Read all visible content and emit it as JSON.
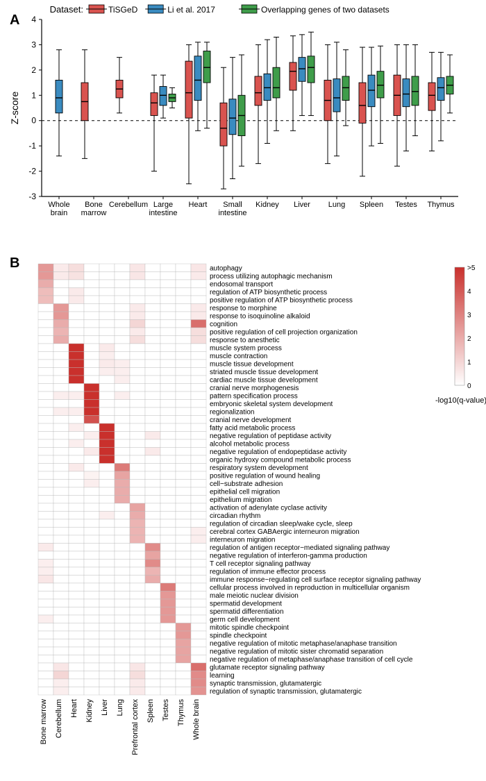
{
  "panelA": {
    "label": "A",
    "type": "boxplot",
    "legend_title": "Dataset:",
    "datasets": [
      {
        "name": "TiSGeD",
        "color": "#d9534f"
      },
      {
        "name": "Li et al. 2017",
        "color": "#3a8bc0"
      },
      {
        "name": "Overlapping genes of two datasets",
        "color": "#3f9d4a"
      }
    ],
    "ylabel": "Z-score",
    "ylim": [
      -3,
      4
    ],
    "ytick_step": 1,
    "categories": [
      "Whole\nbrain",
      "Bone\nmarrow",
      "Cerebellum",
      "Large\nintestine",
      "Heart",
      "Small\nintestine",
      "Kidney",
      "Liver",
      "Lung",
      "Spleen",
      "Testes",
      "Thymus"
    ],
    "boxes": {
      "Whole brain": [
        null,
        {
          "q1": 0.3,
          "med": 0.9,
          "q3": 1.6,
          "wl": -1.4,
          "wh": 2.8
        },
        null
      ],
      "Bone marrow": [
        {
          "q1": 0.0,
          "med": 0.75,
          "q3": 1.5,
          "wl": -1.5,
          "wh": 2.8
        },
        null,
        null
      ],
      "Cerebellum": [
        {
          "q1": 0.9,
          "med": 1.25,
          "q3": 1.6,
          "wl": 0.3,
          "wh": 2.5
        },
        null,
        null
      ],
      "Large intestine": [
        {
          "q1": 0.2,
          "med": 0.7,
          "q3": 1.1,
          "wl": -2.0,
          "wh": 1.8
        },
        {
          "q1": 0.6,
          "med": 1.0,
          "q3": 1.35,
          "wl": 0.1,
          "wh": 1.8
        },
        {
          "q1": 0.75,
          "med": 0.9,
          "q3": 1.05,
          "wl": 0.5,
          "wh": 1.3
        }
      ],
      "Heart": [
        {
          "q1": 0.1,
          "med": 1.1,
          "q3": 2.35,
          "wl": -2.5,
          "wh": 3.0
        },
        {
          "q1": 0.8,
          "med": 1.6,
          "q3": 2.55,
          "wl": -0.4,
          "wh": 3.1
        },
        {
          "q1": 1.5,
          "med": 2.1,
          "q3": 2.75,
          "wl": -0.3,
          "wh": 3.1
        }
      ],
      "Small intestine": [
        {
          "q1": -1.0,
          "med": -0.3,
          "q3": 0.7,
          "wl": -2.7,
          "wh": 2.1
        },
        {
          "q1": -0.55,
          "med": 0.1,
          "q3": 0.85,
          "wl": -2.3,
          "wh": 2.5
        },
        {
          "q1": -0.6,
          "med": 0.2,
          "q3": 1.0,
          "wl": -1.8,
          "wh": 2.6
        }
      ],
      "Kidney": [
        {
          "q1": 0.6,
          "med": 1.1,
          "q3": 1.75,
          "wl": -1.7,
          "wh": 3.0
        },
        {
          "q1": 0.8,
          "med": 1.3,
          "q3": 1.85,
          "wl": -0.9,
          "wh": 3.2
        },
        {
          "q1": 0.9,
          "med": 1.3,
          "q3": 2.1,
          "wl": -0.4,
          "wh": 3.3
        }
      ],
      "Liver": [
        {
          "q1": 1.2,
          "med": 1.95,
          "q3": 2.3,
          "wl": -0.4,
          "wh": 3.35
        },
        {
          "q1": 1.55,
          "med": 2.05,
          "q3": 2.5,
          "wl": 0.2,
          "wh": 3.4
        },
        {
          "q1": 1.5,
          "med": 2.1,
          "q3": 2.55,
          "wl": 0.2,
          "wh": 3.5
        }
      ],
      "Lung": [
        {
          "q1": 0.0,
          "med": 0.8,
          "q3": 1.6,
          "wl": -1.7,
          "wh": 3.0
        },
        {
          "q1": 0.35,
          "med": 0.9,
          "q3": 1.65,
          "wl": -1.4,
          "wh": 3.1
        },
        {
          "q1": 0.8,
          "med": 1.3,
          "q3": 1.75,
          "wl": -0.2,
          "wh": 2.8
        }
      ],
      "Spleen": [
        {
          "q1": -0.1,
          "med": 0.6,
          "q3": 1.5,
          "wl": -2.2,
          "wh": 2.9
        },
        {
          "q1": 0.55,
          "med": 1.2,
          "q3": 1.8,
          "wl": -1.0,
          "wh": 2.9
        },
        {
          "q1": 0.9,
          "med": 1.4,
          "q3": 1.95,
          "wl": -0.9,
          "wh": 2.95
        }
      ],
      "Testes": [
        {
          "q1": 0.2,
          "med": 1.0,
          "q3": 1.8,
          "wl": -1.8,
          "wh": 3.0
        },
        {
          "q1": 0.55,
          "med": 1.05,
          "q3": 1.65,
          "wl": -1.2,
          "wh": 3.0
        },
        {
          "q1": 0.6,
          "med": 1.15,
          "q3": 1.75,
          "wl": -0.6,
          "wh": 3.0
        }
      ],
      "Thymus": [
        {
          "q1": 0.4,
          "med": 1.0,
          "q3": 1.5,
          "wl": -1.2,
          "wh": 2.7
        },
        {
          "q1": 0.8,
          "med": 1.3,
          "q3": 1.7,
          "wl": -0.8,
          "wh": 2.7
        },
        {
          "q1": 1.05,
          "med": 1.4,
          "q3": 1.75,
          "wl": 0.3,
          "wh": 2.6
        }
      ]
    }
  },
  "panelB": {
    "label": "B",
    "type": "heatmap",
    "colorbar": {
      "title": "-log10(q-value)",
      "min": 0,
      "max": 5,
      "ticks": [
        0,
        1,
        2,
        3,
        4,
        ">5"
      ],
      "low": "#ffffff",
      "high": "#c9302c"
    },
    "col_labels": [
      "Bone marrow",
      "Cerebellum",
      "Heart",
      "Kidney",
      "Liver",
      "Lung",
      "Prefrontal cortex",
      "Spleen",
      "Testes",
      "Thymus",
      "Whole brain"
    ],
    "row_labels": [
      "autophagy",
      "process utilizing autophagic mechanism",
      "endosomal transport",
      "regulation of ATP biosynthetic process",
      "positive regulation of ATP biosynthetic process",
      "response to morphine",
      "response to isoquinoline alkaloid",
      "cognition",
      "positive regulation of cell projection organization",
      "response to anesthetic",
      "muscle system process",
      "muscle contraction",
      "muscle tissue development",
      "striated muscle tissue development",
      "cardiac muscle tissue development",
      "cranial nerve morphogenesis",
      "pattern specification process",
      "embryonic skeletal system development",
      "regionalization",
      "cranial nerve development",
      "fatty acid metabolic process",
      "negative regulation of peptidase activity",
      "alcohol metabolic process",
      "negative regulation of endopeptidase activity",
      "organic hydroxy compound metabolic process",
      "respiratory system development",
      "positive regulation of wound healing",
      "cell−substrate adhesion",
      "epithelial cell migration",
      "epithelium migration",
      "activation of adenylate cyclase activity",
      "circadian rhythm",
      "regulation of circadian sleep/wake cycle, sleep",
      "cerebral cortex GABAergic interneuron migration",
      "interneuron migration",
      "regulation of antigen receptor−mediated signaling pathway",
      "negative regulation of interferon-gamma production",
      "T cell receptor signaling pathway",
      "regulation of immune effector process",
      "immune response−regulating cell surface receptor signaling pathway",
      "cellular process involved in reproduction in multicellular organism",
      "male meiotic nuclear division",
      "spermatid development",
      "spermatid differentiation",
      "germ cell development",
      "mitotic spindle checkpoint",
      "spindle checkpoint",
      "negative regulation of mitotic metaphase/anaphase transition",
      "negative regulation of mitotic sister chromatid separation",
      "negative regulation of metaphase/anaphase transition of cell cycle",
      "glutamate receptor signaling pathway",
      "learning",
      "synaptic transmission, glutamatergic",
      "regulation of synaptic transmission, glutamatergic"
    ],
    "values": [
      [
        2.5,
        0.5,
        0.8,
        0,
        0,
        0,
        0.6,
        0,
        0,
        0,
        0.6
      ],
      [
        2.5,
        0.5,
        0.7,
        0,
        0,
        0,
        0.6,
        0,
        0,
        0,
        0.5
      ],
      [
        2.0,
        0,
        0,
        0,
        0,
        0,
        0,
        0,
        0,
        0,
        0
      ],
      [
        1.6,
        0,
        0.5,
        0,
        0,
        0,
        0,
        0,
        0,
        0,
        0
      ],
      [
        1.6,
        0,
        0.5,
        0,
        0,
        0,
        0,
        0,
        0,
        0,
        0
      ],
      [
        0,
        2.5,
        0,
        0,
        0,
        0,
        0.5,
        0,
        0,
        0,
        0.5
      ],
      [
        0,
        2.5,
        0,
        0,
        0,
        0,
        0.5,
        0,
        0,
        0,
        0.5
      ],
      [
        0,
        2.0,
        0,
        0,
        0,
        0,
        1.0,
        0,
        0,
        0,
        3.5
      ],
      [
        0,
        1.8,
        0,
        0,
        0,
        0,
        0.5,
        0,
        0,
        0,
        0.8
      ],
      [
        0,
        2.0,
        0,
        0,
        0,
        0,
        0.8,
        0,
        0,
        0,
        0.8
      ],
      [
        0,
        0,
        5.0,
        0,
        0.5,
        0,
        0,
        0,
        0,
        0,
        0
      ],
      [
        0,
        0,
        5.0,
        0,
        0.4,
        0,
        0,
        0,
        0,
        0,
        0
      ],
      [
        0,
        0,
        5.0,
        0,
        0.5,
        0.4,
        0,
        0,
        0,
        0,
        0
      ],
      [
        0,
        0,
        5.0,
        0,
        0.4,
        0.4,
        0,
        0,
        0,
        0,
        0
      ],
      [
        0,
        0,
        5.0,
        0,
        0,
        0.4,
        0,
        0,
        0,
        0,
        0
      ],
      [
        0,
        0,
        0,
        5.0,
        0,
        0,
        0,
        0,
        0,
        0,
        0
      ],
      [
        0,
        0.4,
        0.4,
        5.0,
        0,
        0.4,
        0,
        0,
        0,
        0,
        0
      ],
      [
        0,
        0,
        0,
        5.0,
        0,
        0,
        0,
        0,
        0,
        0,
        0
      ],
      [
        0,
        0.4,
        0.4,
        5.0,
        0,
        0,
        0,
        0,
        0,
        0,
        0
      ],
      [
        0,
        0,
        0,
        4.2,
        0,
        0,
        0,
        0,
        0,
        0,
        0
      ],
      [
        0,
        0,
        0.4,
        0,
        5.0,
        0,
        0,
        0,
        0,
        0,
        0
      ],
      [
        0,
        0,
        0,
        0.4,
        5.0,
        0,
        0,
        0.5,
        0,
        0,
        0
      ],
      [
        0,
        0,
        0.4,
        0,
        5.0,
        0,
        0,
        0,
        0,
        0,
        0
      ],
      [
        0,
        0,
        0,
        0.5,
        5.0,
        0,
        0,
        0.5,
        0,
        0,
        0
      ],
      [
        0,
        0,
        0,
        0,
        5.0,
        0,
        0,
        0,
        0,
        0,
        0
      ],
      [
        0,
        0,
        0.5,
        0,
        0,
        3.2,
        0,
        0,
        0,
        0,
        0
      ],
      [
        0,
        0,
        0,
        0.3,
        0,
        2.2,
        0,
        0,
        0,
        0,
        0
      ],
      [
        0,
        0,
        0,
        0.4,
        0,
        2.0,
        0,
        0,
        0,
        0,
        0
      ],
      [
        0,
        0,
        0,
        0,
        0,
        2.0,
        0,
        0,
        0,
        0,
        0
      ],
      [
        0,
        0,
        0,
        0,
        0,
        2.0,
        0,
        0,
        0,
        0,
        0
      ],
      [
        0,
        0,
        0,
        0,
        0,
        0,
        2.2,
        0,
        0,
        0,
        0
      ],
      [
        0,
        0,
        0,
        0,
        0.4,
        0,
        2.0,
        0,
        0,
        0,
        0
      ],
      [
        0,
        0,
        0,
        0,
        0,
        0,
        1.8,
        0,
        0,
        0,
        0
      ],
      [
        0,
        0,
        0,
        0,
        0,
        0,
        1.8,
        0,
        0,
        0,
        0.4
      ],
      [
        0,
        0,
        0,
        0,
        0,
        0,
        1.8,
        0,
        0,
        0,
        0.4
      ],
      [
        0.5,
        0,
        0,
        0,
        0,
        0,
        0,
        2.8,
        0,
        0,
        0
      ],
      [
        0,
        0,
        0,
        0,
        0,
        0,
        0,
        2.2,
        0,
        0,
        0
      ],
      [
        0.4,
        0,
        0,
        0,
        0,
        0,
        0,
        2.8,
        0,
        0,
        0
      ],
      [
        0.4,
        0,
        0,
        0,
        0,
        0,
        0,
        1.8,
        0,
        0,
        0
      ],
      [
        0.6,
        0,
        0,
        0,
        0,
        0,
        0,
        2.0,
        0,
        0,
        0
      ],
      [
        0,
        0,
        0,
        0,
        0,
        0,
        0,
        0,
        3.2,
        0,
        0
      ],
      [
        0,
        0,
        0,
        0,
        0,
        0,
        0,
        0,
        2.5,
        0,
        0
      ],
      [
        0,
        0,
        0,
        0,
        0,
        0,
        0,
        0,
        2.5,
        0,
        0
      ],
      [
        0,
        0,
        0,
        0,
        0,
        0,
        0,
        0,
        2.5,
        0,
        0
      ],
      [
        0.4,
        0,
        0,
        0,
        0,
        0,
        0,
        0,
        2.5,
        0,
        0
      ],
      [
        0,
        0,
        0,
        0,
        0,
        0,
        0,
        0,
        0,
        2.5,
        0
      ],
      [
        0,
        0,
        0,
        0,
        0,
        0,
        0,
        0,
        0,
        2.5,
        0
      ],
      [
        0,
        0,
        0,
        0,
        0,
        0,
        0,
        0,
        0,
        2.2,
        0
      ],
      [
        0,
        0,
        0,
        0,
        0,
        0,
        0,
        0,
        0,
        2.2,
        0
      ],
      [
        0,
        0,
        0,
        0,
        0,
        0,
        0,
        0,
        0,
        2.2,
        0
      ],
      [
        0,
        0.6,
        0,
        0,
        0,
        0,
        0.6,
        0,
        0,
        0,
        3.5
      ],
      [
        0,
        1.0,
        0,
        0,
        0,
        0,
        0.8,
        0,
        0,
        0,
        2.8
      ],
      [
        0,
        0.4,
        0,
        0,
        0,
        0,
        0.5,
        0,
        0,
        0,
        2.8
      ],
      [
        0,
        0.4,
        0,
        0,
        0,
        0,
        0.5,
        0,
        0,
        0,
        2.6
      ]
    ]
  }
}
